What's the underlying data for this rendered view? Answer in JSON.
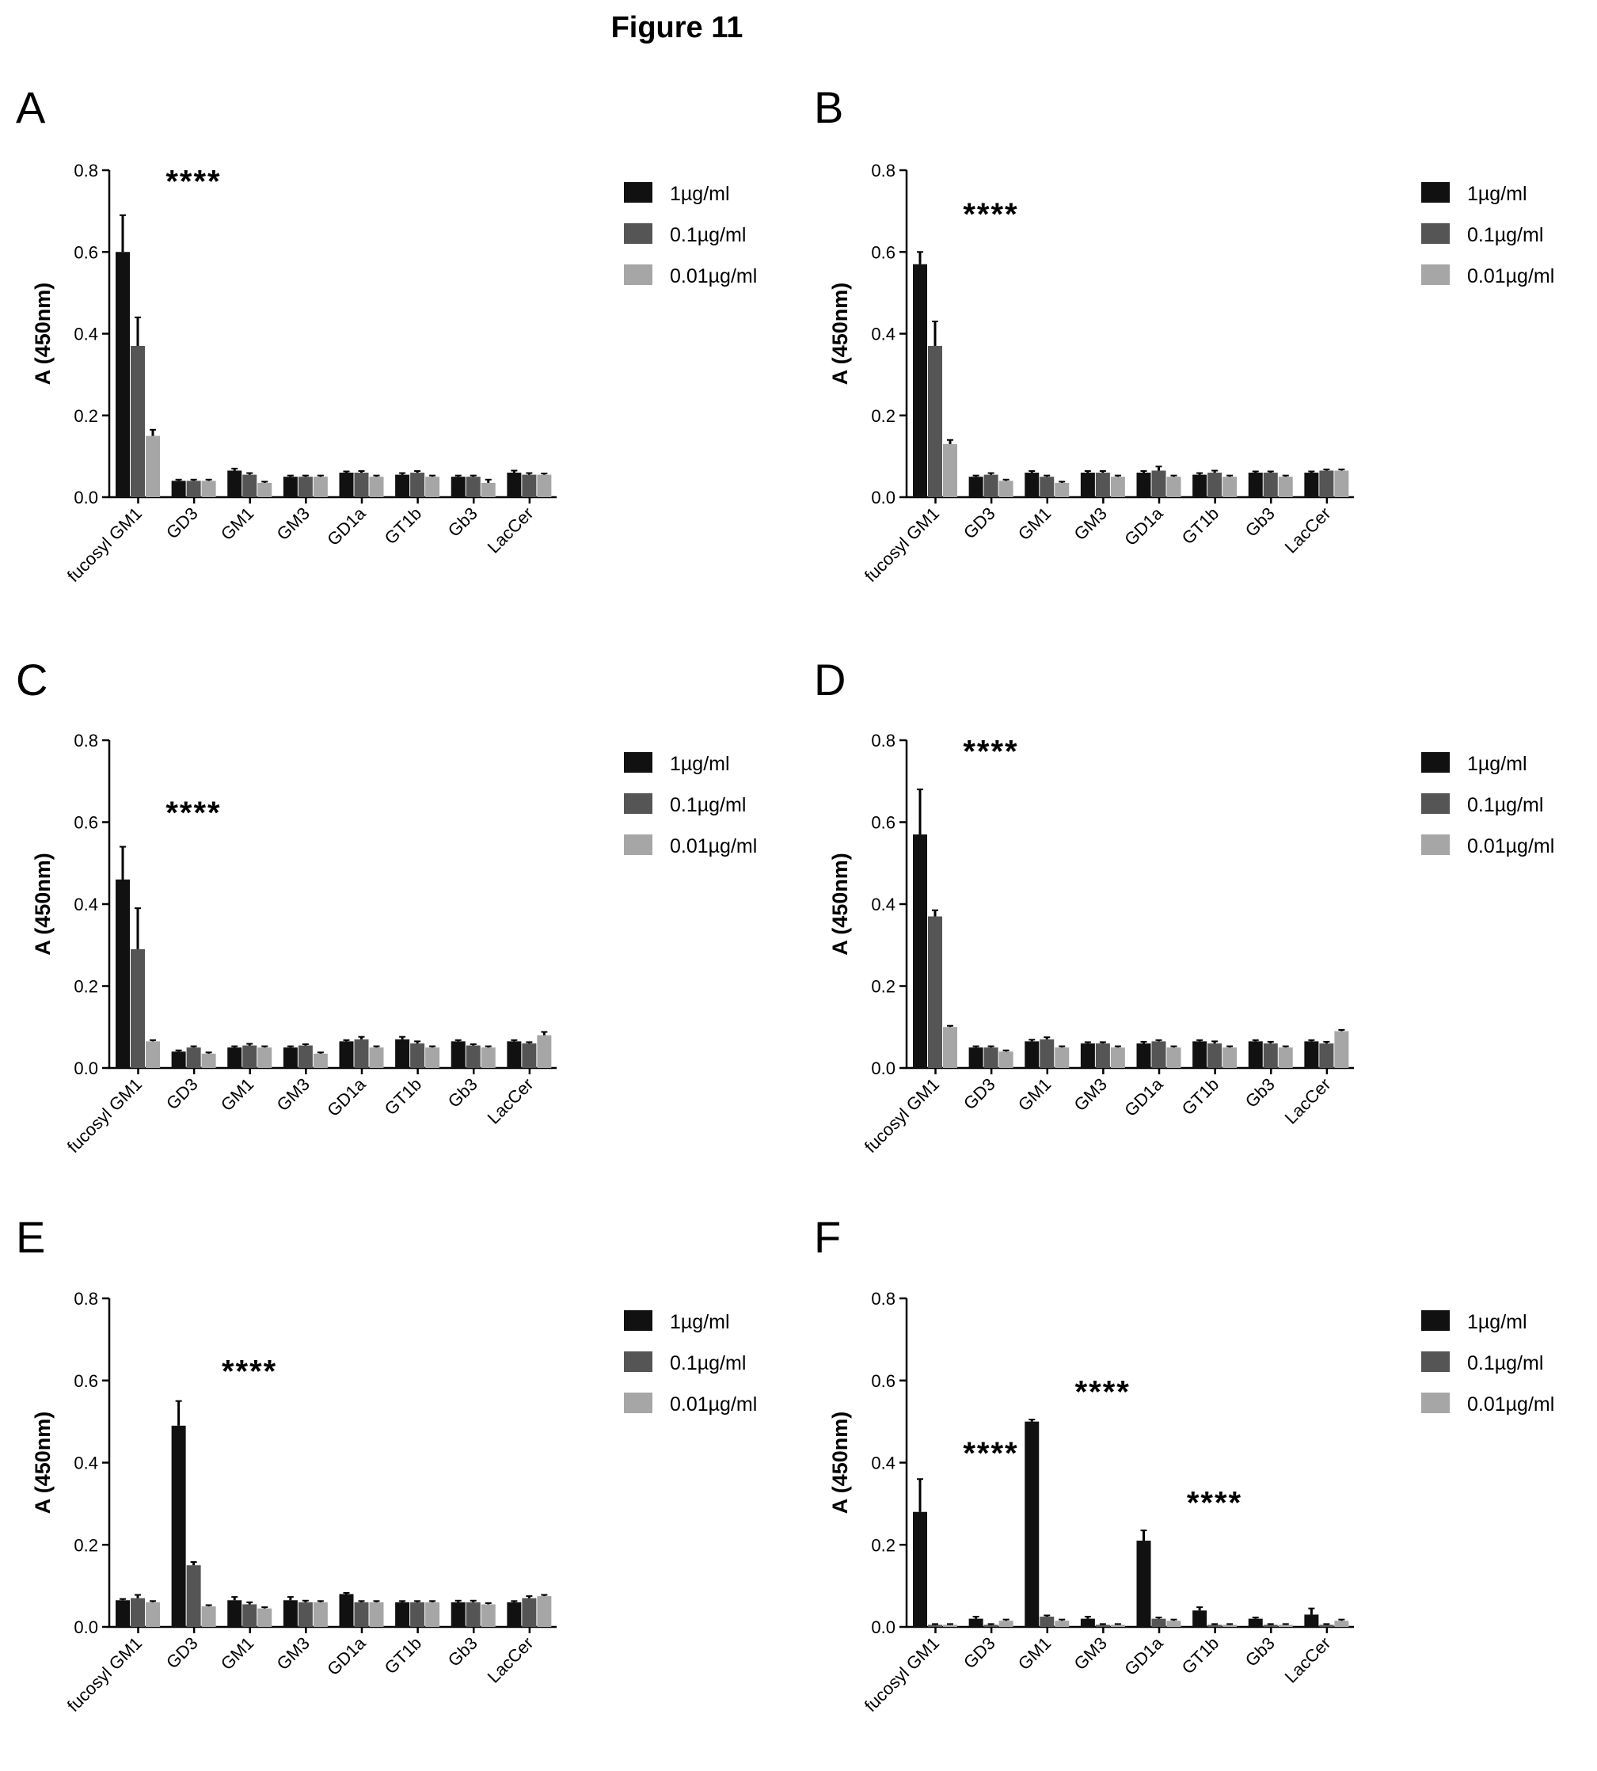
{
  "figure_title": "Figure 11",
  "colors": {
    "1µg/ml": "#111111",
    "0.1µg/ml": "#555555",
    "0.01µg/ml": "#a6a6a6"
  },
  "chart_data": [
    {
      "panel": "A",
      "type": "bar",
      "ylabel": "A (450nm)",
      "ylim": [
        0,
        0.8
      ],
      "yticks": [
        "0.0",
        "0.2",
        "0.4",
        "0.6",
        "0.8"
      ],
      "categories": [
        "fucosyl GM1",
        "GD3",
        "GM1",
        "GM3",
        "GD1a",
        "GT1b",
        "Gb3",
        "LacCer"
      ],
      "series": [
        {
          "name": "1µg/ml",
          "values": [
            0.6,
            0.04,
            0.065,
            0.05,
            0.06,
            0.055,
            0.05,
            0.06
          ],
          "errors": [
            0.09,
            0.003,
            0.005,
            0.003,
            0.003,
            0.004,
            0.003,
            0.005
          ]
        },
        {
          "name": "0.1µg/ml",
          "values": [
            0.37,
            0.04,
            0.055,
            0.05,
            0.06,
            0.06,
            0.05,
            0.055
          ],
          "errors": [
            0.07,
            0.003,
            0.004,
            0.003,
            0.004,
            0.004,
            0.003,
            0.004
          ]
        },
        {
          "name": "0.01µg/ml",
          "values": [
            0.15,
            0.04,
            0.035,
            0.05,
            0.05,
            0.05,
            0.035,
            0.055
          ],
          "errors": [
            0.015,
            0.003,
            0.003,
            0.003,
            0.003,
            0.003,
            0.008,
            0.003
          ]
        }
      ],
      "annotations": [
        {
          "text": "****",
          "category": 0,
          "y": 0.77
        }
      ],
      "legend": "right"
    },
    {
      "panel": "B",
      "type": "bar",
      "ylabel": "A (450nm)",
      "ylim": [
        0,
        0.8
      ],
      "yticks": [
        "0.0",
        "0.2",
        "0.4",
        "0.6",
        "0.8"
      ],
      "categories": [
        "fucosyl GM1",
        "GD3",
        "GM1",
        "GM3",
        "GD1a",
        "GT1b",
        "Gb3",
        "LacCer"
      ],
      "series": [
        {
          "name": "1µg/ml",
          "values": [
            0.57,
            0.05,
            0.06,
            0.06,
            0.06,
            0.055,
            0.06,
            0.06
          ],
          "errors": [
            0.03,
            0.003,
            0.004,
            0.004,
            0.004,
            0.004,
            0.003,
            0.003
          ]
        },
        {
          "name": "0.1µg/ml",
          "values": [
            0.37,
            0.055,
            0.05,
            0.06,
            0.065,
            0.06,
            0.06,
            0.065
          ],
          "errors": [
            0.06,
            0.004,
            0.003,
            0.004,
            0.01,
            0.005,
            0.003,
            0.003
          ]
        },
        {
          "name": "0.01µg/ml",
          "values": [
            0.13,
            0.04,
            0.035,
            0.05,
            0.05,
            0.05,
            0.05,
            0.065
          ],
          "errors": [
            0.01,
            0.003,
            0.003,
            0.003,
            0.003,
            0.003,
            0.003,
            0.003
          ]
        }
      ],
      "annotations": [
        {
          "text": "****",
          "category": 0,
          "y": 0.69
        }
      ],
      "legend": "right"
    },
    {
      "panel": "C",
      "type": "bar",
      "ylabel": "A (450nm)",
      "ylim": [
        0,
        0.8
      ],
      "yticks": [
        "0.0",
        "0.2",
        "0.4",
        "0.6",
        "0.8"
      ],
      "categories": [
        "fucosyl GM1",
        "GD3",
        "GM1",
        "GM3",
        "GD1a",
        "GT1b",
        "Gb3",
        "LacCer"
      ],
      "series": [
        {
          "name": "1µg/ml",
          "values": [
            0.46,
            0.04,
            0.05,
            0.05,
            0.065,
            0.07,
            0.065,
            0.065
          ],
          "errors": [
            0.08,
            0.003,
            0.003,
            0.003,
            0.003,
            0.006,
            0.003,
            0.003
          ]
        },
        {
          "name": "0.1µg/ml",
          "values": [
            0.29,
            0.05,
            0.055,
            0.055,
            0.07,
            0.06,
            0.055,
            0.06
          ],
          "errors": [
            0.1,
            0.003,
            0.004,
            0.003,
            0.006,
            0.005,
            0.003,
            0.003
          ]
        },
        {
          "name": "0.01µg/ml",
          "values": [
            0.065,
            0.035,
            0.05,
            0.035,
            0.05,
            0.05,
            0.05,
            0.08
          ],
          "errors": [
            0.003,
            0.003,
            0.003,
            0.003,
            0.003,
            0.003,
            0.003,
            0.008
          ]
        }
      ],
      "annotations": [
        {
          "text": "****",
          "category": 0,
          "y": 0.62
        }
      ],
      "legend": "right"
    },
    {
      "panel": "D",
      "type": "bar",
      "ylabel": "A (450nm)",
      "ylim": [
        0,
        0.8
      ],
      "yticks": [
        "0.0",
        "0.2",
        "0.4",
        "0.6",
        "0.8"
      ],
      "categories": [
        "fucosyl GM1",
        "GD3",
        "GM1",
        "GM3",
        "GD1a",
        "GT1b",
        "Gb3",
        "LacCer"
      ],
      "series": [
        {
          "name": "1µg/ml",
          "values": [
            0.57,
            0.05,
            0.065,
            0.06,
            0.06,
            0.065,
            0.065,
            0.065
          ],
          "errors": [
            0.11,
            0.003,
            0.004,
            0.003,
            0.004,
            0.003,
            0.003,
            0.003
          ]
        },
        {
          "name": "0.1µg/ml",
          "values": [
            0.37,
            0.05,
            0.07,
            0.06,
            0.065,
            0.06,
            0.06,
            0.06
          ],
          "errors": [
            0.015,
            0.003,
            0.005,
            0.003,
            0.003,
            0.005,
            0.004,
            0.004
          ]
        },
        {
          "name": "0.01µg/ml",
          "values": [
            0.1,
            0.04,
            0.05,
            0.05,
            0.05,
            0.05,
            0.05,
            0.09
          ],
          "errors": [
            0.003,
            0.003,
            0.003,
            0.003,
            0.003,
            0.003,
            0.003,
            0.003
          ]
        }
      ],
      "annotations": [
        {
          "text": "****",
          "category": 0,
          "y": 0.77
        }
      ],
      "legend": "right"
    },
    {
      "panel": "E",
      "type": "bar",
      "ylabel": "A (450nm)",
      "ylim": [
        0,
        0.8
      ],
      "yticks": [
        "0.0",
        "0.2",
        "0.4",
        "0.6",
        "0.8"
      ],
      "categories": [
        "fucosyl GM1",
        "GD3",
        "GM1",
        "GM3",
        "GD1a",
        "GT1b",
        "Gb3",
        "LacCer"
      ],
      "series": [
        {
          "name": "1µg/ml",
          "values": [
            0.065,
            0.49,
            0.065,
            0.065,
            0.08,
            0.06,
            0.06,
            0.06
          ],
          "errors": [
            0.003,
            0.06,
            0.008,
            0.008,
            0.003,
            0.003,
            0.004,
            0.003
          ]
        },
        {
          "name": "0.1µg/ml",
          "values": [
            0.07,
            0.15,
            0.055,
            0.06,
            0.06,
            0.06,
            0.06,
            0.07
          ],
          "errors": [
            0.008,
            0.008,
            0.005,
            0.004,
            0.003,
            0.003,
            0.004,
            0.005
          ]
        },
        {
          "name": "0.01µg/ml",
          "values": [
            0.06,
            0.05,
            0.045,
            0.06,
            0.06,
            0.06,
            0.055,
            0.075
          ],
          "errors": [
            0.003,
            0.003,
            0.003,
            0.003,
            0.003,
            0.003,
            0.003,
            0.003
          ]
        }
      ],
      "annotations": [
        {
          "text": "****",
          "category": 1,
          "y": 0.62
        }
      ],
      "legend": "right"
    },
    {
      "panel": "F",
      "type": "bar",
      "ylabel": "A (450nm)",
      "ylim": [
        0,
        0.8
      ],
      "yticks": [
        "0.0",
        "0.2",
        "0.4",
        "0.6",
        "0.8"
      ],
      "categories": [
        "fucosyl GM1",
        "GD3",
        "GM1",
        "GM3",
        "GD1a",
        "GT1b",
        "Gb3",
        "LacCer"
      ],
      "series": [
        {
          "name": "1µg/ml",
          "values": [
            0.28,
            0.02,
            0.5,
            0.02,
            0.21,
            0.04,
            0.02,
            0.03
          ],
          "errors": [
            0.08,
            0.005,
            0.005,
            0.005,
            0.025,
            0.008,
            0.003,
            0.015
          ]
        },
        {
          "name": "0.1µg/ml",
          "values": [
            0.005,
            0.005,
            0.025,
            0.005,
            0.02,
            0.005,
            0.005,
            0.005
          ],
          "errors": [
            0.002,
            0.002,
            0.003,
            0.002,
            0.003,
            0.002,
            0.002,
            0.002
          ]
        },
        {
          "name": "0.01µg/ml",
          "values": [
            0.005,
            0.015,
            0.015,
            0.005,
            0.015,
            0.005,
            0.005,
            0.015
          ],
          "errors": [
            0.002,
            0.003,
            0.003,
            0.002,
            0.003,
            0.002,
            0.002,
            0.003
          ]
        }
      ],
      "annotations": [
        {
          "text": "****",
          "category": 0,
          "y": 0.42
        },
        {
          "text": "****",
          "category": 2,
          "y": 0.57
        },
        {
          "text": "****",
          "category": 4,
          "y": 0.3
        }
      ],
      "legend": "right"
    }
  ]
}
